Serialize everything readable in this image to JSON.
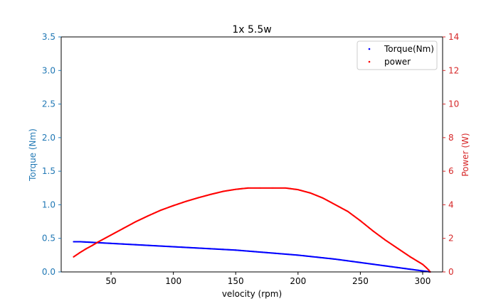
{
  "chart_data": {
    "type": "scatter",
    "title": "1x 5.5w",
    "xlabel": "velocity (rpm)",
    "ylabel_left": "Torque (Nm)",
    "ylabel_right": "Power (W)",
    "xlim": [
      10,
      316
    ],
    "ylim_left": [
      0,
      3.5
    ],
    "ylim_right": [
      0,
      14
    ],
    "xticks": [
      50,
      100,
      150,
      200,
      250,
      300
    ],
    "yticks_left": [
      "0.0",
      "0.5",
      "1.0",
      "1.5",
      "2.0",
      "2.5",
      "3.0",
      "3.5"
    ],
    "yticks_right": [
      "0",
      "2",
      "4",
      "6",
      "8",
      "10",
      "12",
      "14"
    ],
    "legend_position": "top-right",
    "grid": false,
    "series": [
      {
        "name": "Torque(Nm)",
        "axis": "left",
        "color": "#0000ff",
        "x": [
          20,
          25,
          30,
          35,
          40,
          50,
          60,
          70,
          80,
          90,
          100,
          110,
          120,
          130,
          140,
          150,
          160,
          170,
          180,
          190,
          200,
          210,
          220,
          230,
          240,
          250,
          260,
          270,
          280,
          290,
          300,
          303,
          305,
          306
        ],
        "y": [
          0.45,
          0.45,
          0.445,
          0.44,
          0.435,
          0.425,
          0.415,
          0.405,
          0.395,
          0.385,
          0.375,
          0.365,
          0.355,
          0.345,
          0.335,
          0.325,
          0.31,
          0.295,
          0.28,
          0.265,
          0.25,
          0.23,
          0.21,
          0.19,
          0.165,
          0.14,
          0.115,
          0.09,
          0.065,
          0.04,
          0.015,
          0.008,
          0.003,
          0.0
        ]
      },
      {
        "name": "power",
        "axis": "right",
        "color": "#ff0000",
        "x": [
          20,
          25,
          30,
          35,
          40,
          50,
          60,
          70,
          80,
          90,
          100,
          110,
          120,
          130,
          140,
          150,
          160,
          170,
          180,
          190,
          200,
          210,
          220,
          230,
          240,
          250,
          260,
          270,
          280,
          290,
          300,
          303,
          305,
          306
        ],
        "y": [
          0.9,
          1.15,
          1.38,
          1.58,
          1.8,
          2.2,
          2.6,
          3.0,
          3.35,
          3.68,
          3.95,
          4.2,
          4.42,
          4.62,
          4.8,
          4.92,
          5.0,
          5.0,
          5.0,
          5.0,
          4.9,
          4.7,
          4.4,
          4.0,
          3.6,
          3.05,
          2.45,
          1.9,
          1.4,
          0.9,
          0.45,
          0.25,
          0.1,
          0.0
        ]
      }
    ]
  }
}
